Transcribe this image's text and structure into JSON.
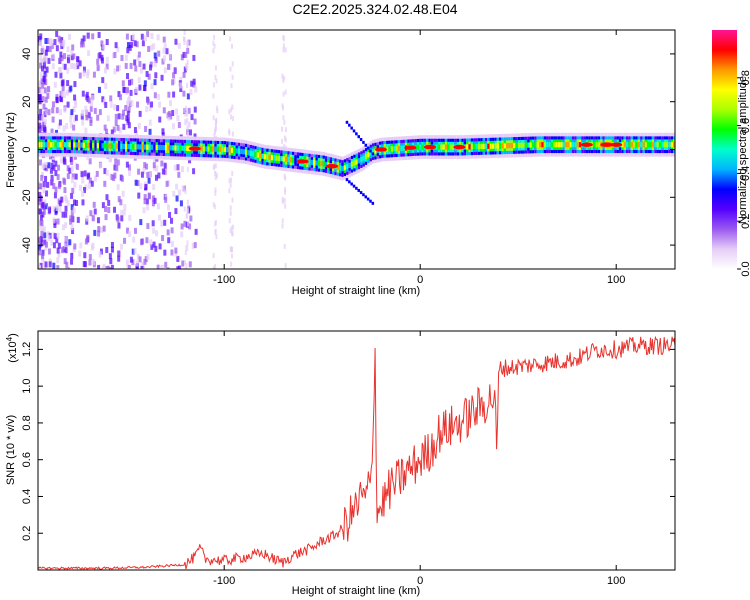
{
  "title": "C2E2.2025.324.02.48.E04",
  "colors": {
    "snr_line": "#e8332e",
    "background": "#ffffff"
  },
  "chart_data": [
    {
      "type": "heatmap",
      "name": "spectrogram",
      "xlabel": "Height of straight line (km)",
      "ylabel": "Frequency (Hz)",
      "xlim": [
        -195,
        130
      ],
      "ylim": [
        -50,
        50
      ],
      "x_ticks": [
        -100,
        0,
        100
      ],
      "y_ticks": [
        -40,
        -20,
        0,
        20,
        40
      ],
      "colorbar": {
        "label": "Normalized spectral amplitude",
        "range": [
          0,
          1
        ],
        "ticks": [
          0.0,
          0.2,
          0.4,
          0.6,
          0.8
        ],
        "tick_labels": [
          "0.0",
          "0.2",
          "0.4",
          "0.6",
          "0.8"
        ],
        "colormap": [
          "#ffffff",
          "#e6cdf7",
          "#9b59f0",
          "#5500ff",
          "#0000ff",
          "#00b4ff",
          "#00ffcc",
          "#00ff00",
          "#aaff00",
          "#ffff00",
          "#ff9900",
          "#ff0000",
          "#ff1493"
        ]
      },
      "ridge": {
        "x": [
          -195,
          -180,
          -160,
          -140,
          -120,
          -100,
          -90,
          -80,
          -70,
          -60,
          -50,
          -40,
          -30,
          -25,
          -20,
          -10,
          0,
          10,
          20,
          40,
          60,
          80,
          100,
          130
        ],
        "freq": [
          2,
          2,
          1.5,
          1,
          0.5,
          0,
          -1,
          -3,
          -4,
          -5,
          -6,
          -8,
          -4,
          -1,
          0,
          0.5,
          1,
          1,
          1,
          1.5,
          2,
          2,
          2,
          2
        ]
      }
    },
    {
      "type": "line",
      "name": "snr",
      "xlabel": "Height of straight line (km)",
      "ylabel": "SNR (10 * v/v)",
      "multiplier_label": "(x10",
      "multiplier_exponent": "4",
      "xlim": [
        -195,
        130
      ],
      "ylim": [
        0,
        1.3
      ],
      "x_ticks": [
        -100,
        0,
        100
      ],
      "y_ticks": [
        0.2,
        0.4,
        0.6,
        0.8,
        1.0,
        1.2
      ],
      "y_tick_labels": [
        "0.2",
        "0.4",
        "0.6",
        "0.8",
        "1.0",
        "1.2"
      ],
      "series": [
        {
          "name": "SNR",
          "x": [
            -195,
            -180,
            -160,
            -140,
            -120,
            -115,
            -112,
            -110,
            -100,
            -90,
            -80,
            -75,
            -70,
            -65,
            -60,
            -55,
            -50,
            -45,
            -40,
            -35,
            -32,
            -30,
            -28,
            -25,
            -23,
            -22,
            -20,
            -15,
            -10,
            -5,
            0,
            5,
            10,
            20,
            30,
            38,
            39,
            40,
            41,
            45,
            60,
            80,
            90,
            100,
            110,
            120,
            130
          ],
          "values": [
            0.01,
            0.01,
            0.01,
            0.015,
            0.03,
            0.07,
            0.12,
            0.06,
            0.05,
            0.07,
            0.09,
            0.06,
            0.04,
            0.08,
            0.1,
            0.12,
            0.16,
            0.18,
            0.22,
            0.3,
            0.35,
            0.4,
            0.38,
            0.5,
            1.17,
            0.3,
            0.35,
            0.45,
            0.5,
            0.55,
            0.6,
            0.65,
            0.75,
            0.8,
            0.88,
            0.95,
            0.62,
            1.05,
            1.1,
            1.1,
            1.12,
            1.15,
            1.2,
            1.2,
            1.22,
            1.22,
            1.22
          ]
        }
      ]
    }
  ]
}
